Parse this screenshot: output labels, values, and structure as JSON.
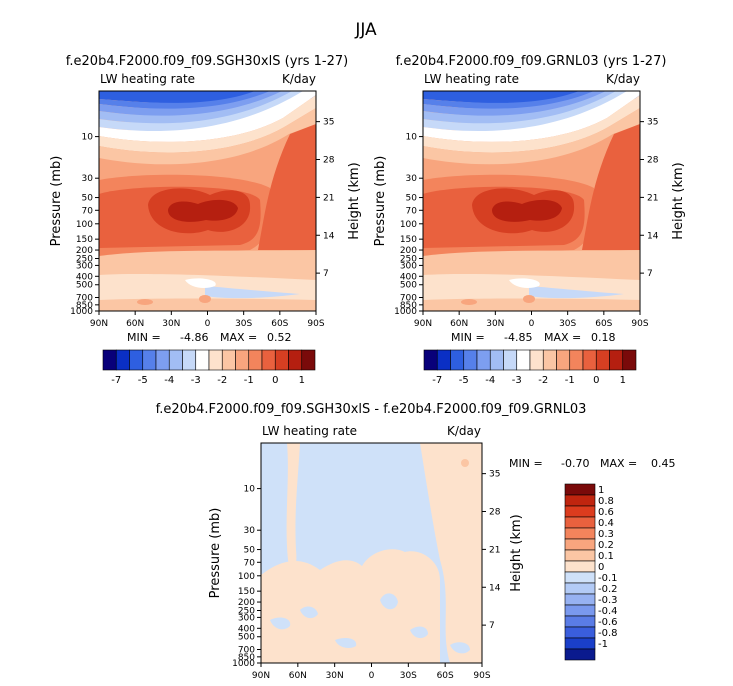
{
  "page_title": "JJA",
  "panels": [
    {
      "title": "f.e20b4.F2000.f09_f09.SGH30xlS (yrs 1-27)",
      "variable_label": "LW heating rate",
      "units_label": "K/day",
      "ylabel_left": "Pressure (mb)",
      "ylabel_right": "Height (km)",
      "stats": {
        "min_label": "MIN =",
        "min": "-4.86",
        "max_label": "MAX =",
        "max": "0.52"
      }
    },
    {
      "title": "f.e20b4.F2000.f09_f09.GRNL03 (yrs 1-27)",
      "variable_label": "LW heating rate",
      "units_label": "K/day",
      "ylabel_left": "Pressure (mb)",
      "ylabel_right": "Height (km)",
      "stats": {
        "min_label": "MIN =",
        "min": "-4.85",
        "max_label": "MAX =",
        "max": "0.18"
      }
    },
    {
      "title": "f.e20b4.F2000.f09_f09.SGH30xlS - f.e20b4.F2000.f09_f09.GRNL03",
      "variable_label": "LW heating rate",
      "units_label": "K/day",
      "ylabel_left": "Pressure (mb)",
      "ylabel_right": "Height (km)",
      "stats": {
        "min_label": "MIN =",
        "min": "-0.70",
        "max_label": "MAX =",
        "max": "0.45"
      }
    }
  ],
  "colorbar_main": {
    "colors": [
      "#08007a",
      "#0a2fc4",
      "#2e5fe0",
      "#5680ea",
      "#7d9ef0",
      "#a2bdf4",
      "#c6d9f8",
      "#ffffff",
      "#fde2cc",
      "#fbc6a4",
      "#f8a57e",
      "#f3845c",
      "#e9613e",
      "#d63f22",
      "#b51f10",
      "#7a0a0a"
    ],
    "ticks": [
      "-7",
      "-5",
      "-4",
      "-3",
      "-2",
      "-1",
      "0",
      "1"
    ]
  },
  "colorbar_diff": {
    "colors": [
      "#7a0a0a",
      "#c0250f",
      "#dc3c1e",
      "#e9613e",
      "#f3845c",
      "#f8a57e",
      "#fbc6a4",
      "#fde2cc",
      "#cfe1f9",
      "#b3cbf6",
      "#97b2f2",
      "#7a99ee",
      "#5a7ce6",
      "#3a5edd",
      "#1a3fc9",
      "#0a1a8e"
    ],
    "labels": [
      "1",
      "0.8",
      "0.6",
      "0.4",
      "0.3",
      "0.2",
      "0.1",
      "0",
      "-0.1",
      "-0.2",
      "-0.3",
      "-0.4",
      "-0.6",
      "-0.8",
      "-1"
    ]
  },
  "chart_data": [
    {
      "type": "heatmap",
      "title": "f.e20b4.F2000.f09_f09.SGH30xlS (yrs 1-27)",
      "xlabel": "",
      "ylabel": "Pressure (mb)",
      "x_ticks": [
        "90N",
        "60N",
        "30N",
        "0",
        "30S",
        "60S",
        "90S"
      ],
      "y_ticks_pressure": [
        "10",
        "30",
        "50",
        "70",
        "100",
        "150",
        "200",
        "250",
        "300",
        "400",
        "500",
        "700",
        "850",
        "1000"
      ],
      "y_ticks_height": [
        "35",
        "28",
        "21",
        "14",
        "7"
      ],
      "ylim_mb": [
        1000,
        3
      ],
      "log_scale_y": true,
      "min": -4.86,
      "max": 0.52
    },
    {
      "type": "heatmap",
      "title": "f.e20b4.F2000.f09_f09.GRNL03 (yrs 1-27)",
      "xlabel": "",
      "ylabel": "Pressure (mb)",
      "x_ticks": [
        "90N",
        "60N",
        "30N",
        "0",
        "30S",
        "60S",
        "90S"
      ],
      "y_ticks_pressure": [
        "10",
        "30",
        "50",
        "70",
        "100",
        "150",
        "200",
        "250",
        "300",
        "400",
        "500",
        "700",
        "850",
        "1000"
      ],
      "y_ticks_height": [
        "35",
        "28",
        "21",
        "14",
        "7"
      ],
      "ylim_mb": [
        1000,
        3
      ],
      "log_scale_y": true,
      "min": -4.85,
      "max": 0.18
    },
    {
      "type": "heatmap",
      "title": "f.e20b4.F2000.f09_f09.SGH30xlS - f.e20b4.F2000.f09_f09.GRNL03",
      "xlabel": "",
      "ylabel": "Pressure (mb)",
      "x_ticks": [
        "90N",
        "60N",
        "30N",
        "0",
        "30S",
        "60S",
        "90S"
      ],
      "y_ticks_pressure": [
        "10",
        "30",
        "50",
        "70",
        "100",
        "150",
        "200",
        "250",
        "300",
        "400",
        "500",
        "700",
        "850",
        "1000"
      ],
      "y_ticks_height": [
        "35",
        "28",
        "21",
        "14",
        "7"
      ],
      "ylim_mb": [
        1000,
        3
      ],
      "log_scale_y": true,
      "min": -0.7,
      "max": 0.45
    }
  ]
}
